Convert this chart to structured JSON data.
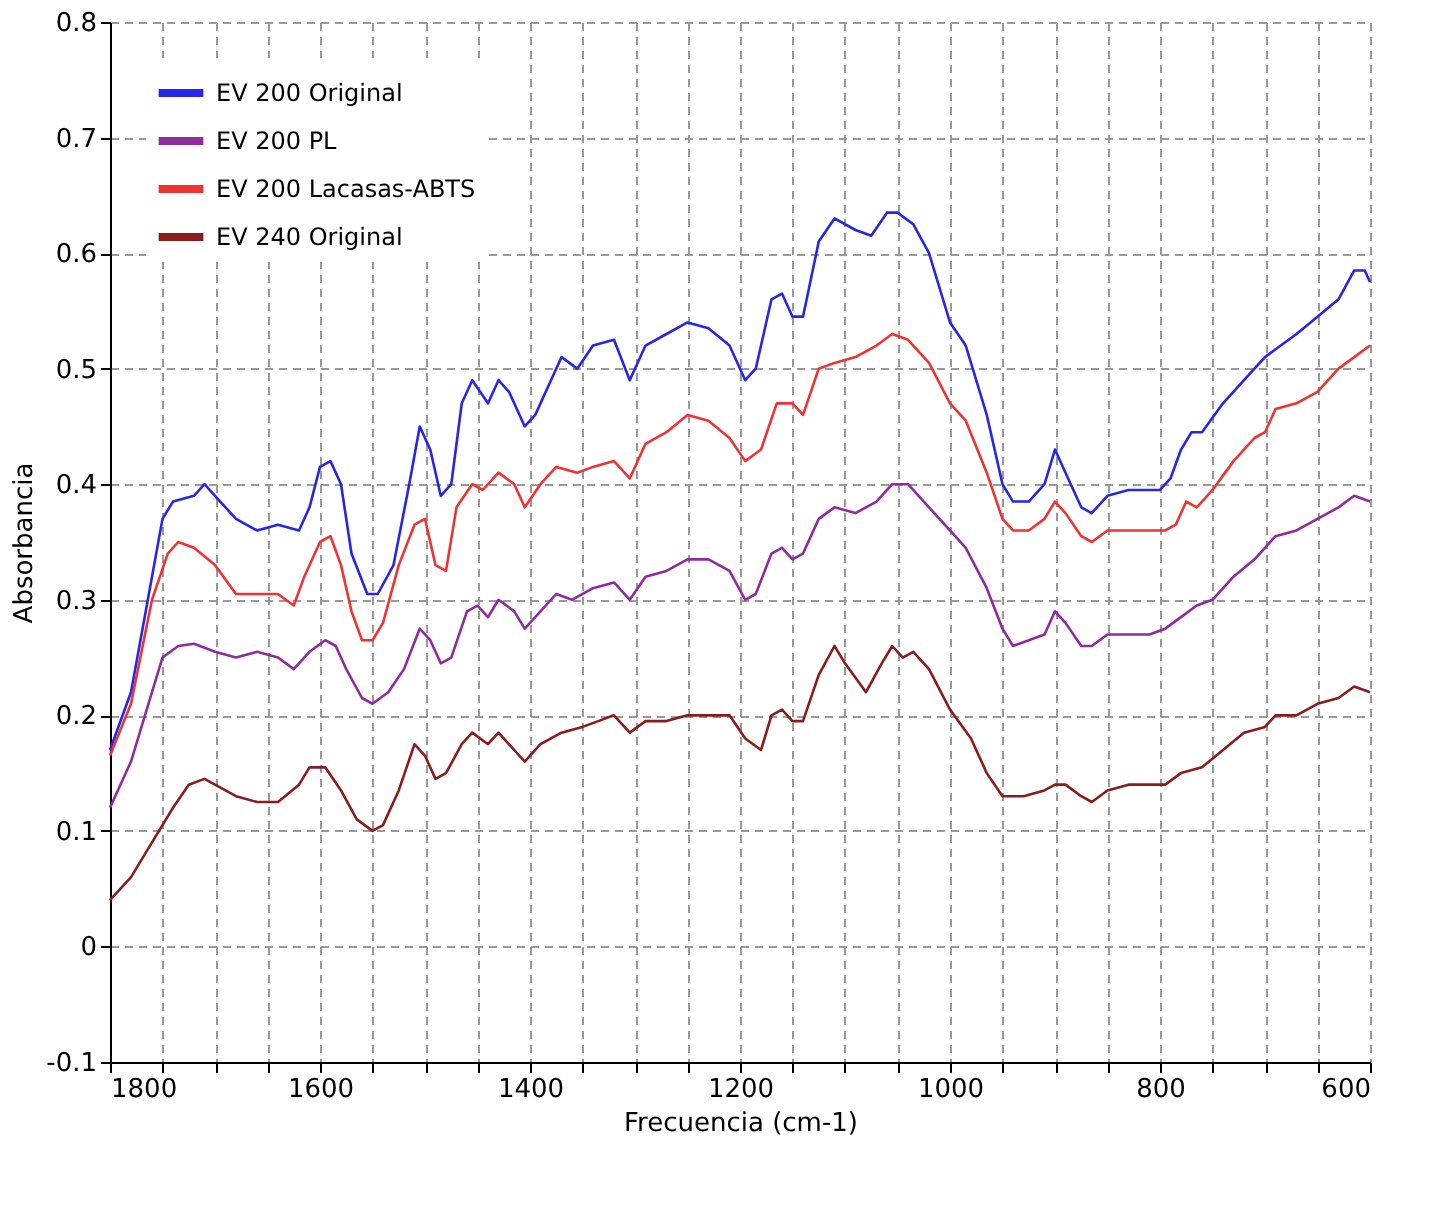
{
  "chart_data": {
    "type": "line",
    "xlabel": "Frecuencia (cm-1)",
    "ylabel": "Absorbancia",
    "xlim": [
      1800,
      600
    ],
    "ylim": [
      -0.1,
      0.8
    ],
    "xticks": [
      1800,
      {
        "value": 1750,
        "label": null
      },
      1600,
      {
        "value": 1700,
        "label": null
      },
      {
        "value": 1650,
        "label": null
      },
      {
        "value": 1550,
        "label": null
      },
      {
        "value": 1500,
        "label": null
      },
      {
        "value": 1450,
        "label": null
      },
      1400,
      {
        "value": 1350,
        "label": null
      },
      {
        "value": 1300,
        "label": null
      },
      {
        "value": 1250,
        "label": null
      },
      1200,
      {
        "value": 1150,
        "label": null
      },
      {
        "value": 1100,
        "label": null
      },
      {
        "value": 1050,
        "label": null
      },
      1000,
      {
        "value": 950,
        "label": null
      },
      {
        "value": 900,
        "label": null
      },
      {
        "value": 850,
        "label": null
      },
      800,
      {
        "value": 750,
        "label": null
      },
      {
        "value": 700,
        "label": null
      },
      {
        "value": 650,
        "label": null
      },
      600
    ],
    "yticks": [
      -0.1,
      0,
      0.1,
      0.2,
      0.3,
      0.4,
      0.5,
      0.6,
      0.7,
      0.8
    ],
    "grid": true,
    "legend": "top left",
    "line_style": "solid",
    "marker": "none",
    "x": [
      1800,
      1780,
      1760,
      1750,
      1740,
      1720,
      1710,
      1700,
      1680,
      1660,
      1640,
      1620,
      1610,
      1600,
      1590,
      1580,
      1570,
      1555,
      1545,
      1530,
      1515,
      1505,
      1495,
      1485,
      1475,
      1465,
      1455,
      1440,
      1430,
      1420,
      1405,
      1395,
      1380,
      1370,
      1355,
      1340,
      1320,
      1305,
      1290,
      1270,
      1250,
      1230,
      1210,
      1195,
      1185,
      1170,
      1160,
      1150,
      1140,
      1125,
      1110,
      1090,
      1075,
      1060,
      1050,
      1035,
      1020,
      1000,
      985,
      965,
      950,
      940,
      925,
      910,
      900,
      890,
      875,
      865,
      850,
      830,
      810,
      800,
      790,
      780,
      770,
      760,
      740,
      720,
      700,
      685,
      670,
      650,
      630,
      615,
      605,
      600
    ],
    "series": [
      {
        "name": "EV 200 Original",
        "color": "#2626e6",
        "values": [
          0.17,
          0.22,
          0.32,
          0.37,
          0.385,
          0.39,
          0.4,
          0.39,
          0.37,
          0.36,
          0.365,
          0.36,
          0.38,
          0.415,
          0.42,
          0.4,
          0.34,
          0.305,
          0.305,
          0.33,
          0.4,
          0.45,
          0.43,
          0.39,
          0.4,
          0.47,
          0.49,
          0.47,
          0.49,
          0.48,
          0.45,
          0.46,
          0.49,
          0.51,
          0.5,
          0.52,
          0.525,
          0.49,
          0.52,
          0.53,
          0.54,
          0.535,
          0.52,
          0.49,
          0.5,
          0.56,
          0.565,
          0.545,
          0.545,
          0.61,
          0.63,
          0.62,
          0.615,
          0.635,
          0.635,
          0.625,
          0.6,
          0.54,
          0.52,
          0.46,
          0.4,
          0.385,
          0.385,
          0.4,
          0.43,
          0.41,
          0.38,
          0.375,
          0.39,
          0.395,
          0.395,
          0.395,
          0.405,
          0.43,
          0.445,
          0.445,
          0.47,
          0.49,
          0.51,
          0.52,
          0.53,
          0.545,
          0.56,
          0.585,
          0.585,
          0.575
        ]
      },
      {
        "name": "EV 200 PL",
        "color": "#8e2c9e",
        "x": [
          1800,
          1780,
          1760,
          1750,
          1735,
          1720,
          1700,
          1680,
          1660,
          1640,
          1625,
          1610,
          1595,
          1585,
          1575,
          1560,
          1550,
          1535,
          1520,
          1505,
          1495,
          1485,
          1475,
          1460,
          1450,
          1440,
          1430,
          1415,
          1405,
          1390,
          1375,
          1360,
          1340,
          1320,
          1305,
          1290,
          1270,
          1250,
          1230,
          1210,
          1195,
          1185,
          1170,
          1160,
          1150,
          1140,
          1125,
          1110,
          1090,
          1070,
          1055,
          1040,
          1020,
          1000,
          985,
          965,
          950,
          940,
          925,
          910,
          900,
          890,
          875,
          865,
          850,
          830,
          810,
          795,
          780,
          765,
          750,
          730,
          710,
          700,
          690,
          670,
          650,
          630,
          615,
          600
        ],
        "values": [
          0.12,
          0.16,
          0.22,
          0.25,
          0.26,
          0.262,
          0.255,
          0.25,
          0.255,
          0.25,
          0.24,
          0.255,
          0.265,
          0.26,
          0.24,
          0.215,
          0.21,
          0.22,
          0.24,
          0.275,
          0.265,
          0.245,
          0.25,
          0.29,
          0.295,
          0.285,
          0.3,
          0.29,
          0.275,
          0.29,
          0.305,
          0.3,
          0.31,
          0.315,
          0.3,
          0.32,
          0.325,
          0.335,
          0.335,
          0.325,
          0.3,
          0.305,
          0.34,
          0.345,
          0.335,
          0.34,
          0.37,
          0.38,
          0.375,
          0.385,
          0.4,
          0.4,
          0.38,
          0.36,
          0.345,
          0.31,
          0.275,
          0.26,
          0.265,
          0.27,
          0.29,
          0.28,
          0.26,
          0.26,
          0.27,
          0.27,
          0.27,
          0.275,
          0.285,
          0.295,
          0.3,
          0.32,
          0.335,
          0.345,
          0.355,
          0.36,
          0.37,
          0.38,
          0.39,
          0.385
        ]
      },
      {
        "name": "EV 200 Lacasas-ABTS",
        "color": "#ee3333",
        "x": [
          1800,
          1780,
          1760,
          1745,
          1735,
          1720,
          1700,
          1680,
          1660,
          1640,
          1625,
          1615,
          1600,
          1590,
          1580,
          1570,
          1560,
          1550,
          1540,
          1525,
          1510,
          1500,
          1490,
          1480,
          1470,
          1455,
          1445,
          1430,
          1415,
          1405,
          1390,
          1375,
          1355,
          1340,
          1320,
          1305,
          1290,
          1270,
          1250,
          1230,
          1210,
          1195,
          1180,
          1165,
          1150,
          1140,
          1125,
          1110,
          1090,
          1070,
          1055,
          1040,
          1020,
          1000,
          985,
          965,
          950,
          940,
          925,
          910,
          900,
          890,
          875,
          865,
          850,
          830,
          810,
          795,
          785,
          775,
          765,
          750,
          730,
          710,
          700,
          690,
          670,
          650,
          630,
          615,
          600
        ],
        "values": [
          0.165,
          0.21,
          0.3,
          0.34,
          0.35,
          0.345,
          0.33,
          0.305,
          0.305,
          0.305,
          0.295,
          0.32,
          0.35,
          0.355,
          0.33,
          0.29,
          0.265,
          0.265,
          0.28,
          0.33,
          0.365,
          0.37,
          0.33,
          0.325,
          0.38,
          0.4,
          0.395,
          0.41,
          0.4,
          0.38,
          0.4,
          0.415,
          0.41,
          0.415,
          0.42,
          0.405,
          0.435,
          0.445,
          0.46,
          0.455,
          0.44,
          0.42,
          0.43,
          0.47,
          0.47,
          0.46,
          0.5,
          0.505,
          0.51,
          0.52,
          0.53,
          0.525,
          0.505,
          0.47,
          0.455,
          0.41,
          0.37,
          0.36,
          0.36,
          0.37,
          0.385,
          0.375,
          0.355,
          0.35,
          0.36,
          0.36,
          0.36,
          0.36,
          0.365,
          0.385,
          0.38,
          0.395,
          0.42,
          0.44,
          0.445,
          0.465,
          0.47,
          0.48,
          0.5,
          0.51,
          0.52
        ]
      },
      {
        "name": "EV 240 Original",
        "color": "#8b1c1c",
        "x": [
          1800,
          1780,
          1760,
          1740,
          1725,
          1710,
          1700,
          1680,
          1660,
          1640,
          1620,
          1610,
          1595,
          1580,
          1565,
          1550,
          1540,
          1525,
          1510,
          1500,
          1490,
          1480,
          1465,
          1455,
          1440,
          1430,
          1415,
          1405,
          1390,
          1370,
          1350,
          1335,
          1320,
          1305,
          1290,
          1270,
          1250,
          1230,
          1210,
          1195,
          1180,
          1170,
          1160,
          1150,
          1140,
          1125,
          1110,
          1100,
          1080,
          1065,
          1055,
          1045,
          1035,
          1020,
          1000,
          980,
          965,
          950,
          930,
          910,
          900,
          890,
          875,
          865,
          850,
          830,
          810,
          795,
          780,
          760,
          740,
          720,
          700,
          690,
          670,
          650,
          630,
          615,
          600
        ],
        "values": [
          0.04,
          0.06,
          0.09,
          0.12,
          0.14,
          0.145,
          0.14,
          0.13,
          0.125,
          0.125,
          0.14,
          0.155,
          0.155,
          0.135,
          0.11,
          0.1,
          0.105,
          0.135,
          0.175,
          0.165,
          0.145,
          0.15,
          0.175,
          0.185,
          0.175,
          0.185,
          0.17,
          0.16,
          0.175,
          0.185,
          0.19,
          0.195,
          0.2,
          0.185,
          0.195,
          0.195,
          0.2,
          0.2,
          0.2,
          0.18,
          0.17,
          0.2,
          0.205,
          0.195,
          0.195,
          0.235,
          0.26,
          0.245,
          0.22,
          0.245,
          0.26,
          0.25,
          0.255,
          0.24,
          0.205,
          0.18,
          0.15,
          0.13,
          0.13,
          0.135,
          0.14,
          0.14,
          0.13,
          0.125,
          0.135,
          0.14,
          0.14,
          0.14,
          0.15,
          0.155,
          0.17,
          0.185,
          0.19,
          0.2,
          0.2,
          0.21,
          0.215,
          0.225,
          0.22
        ]
      }
    ]
  }
}
